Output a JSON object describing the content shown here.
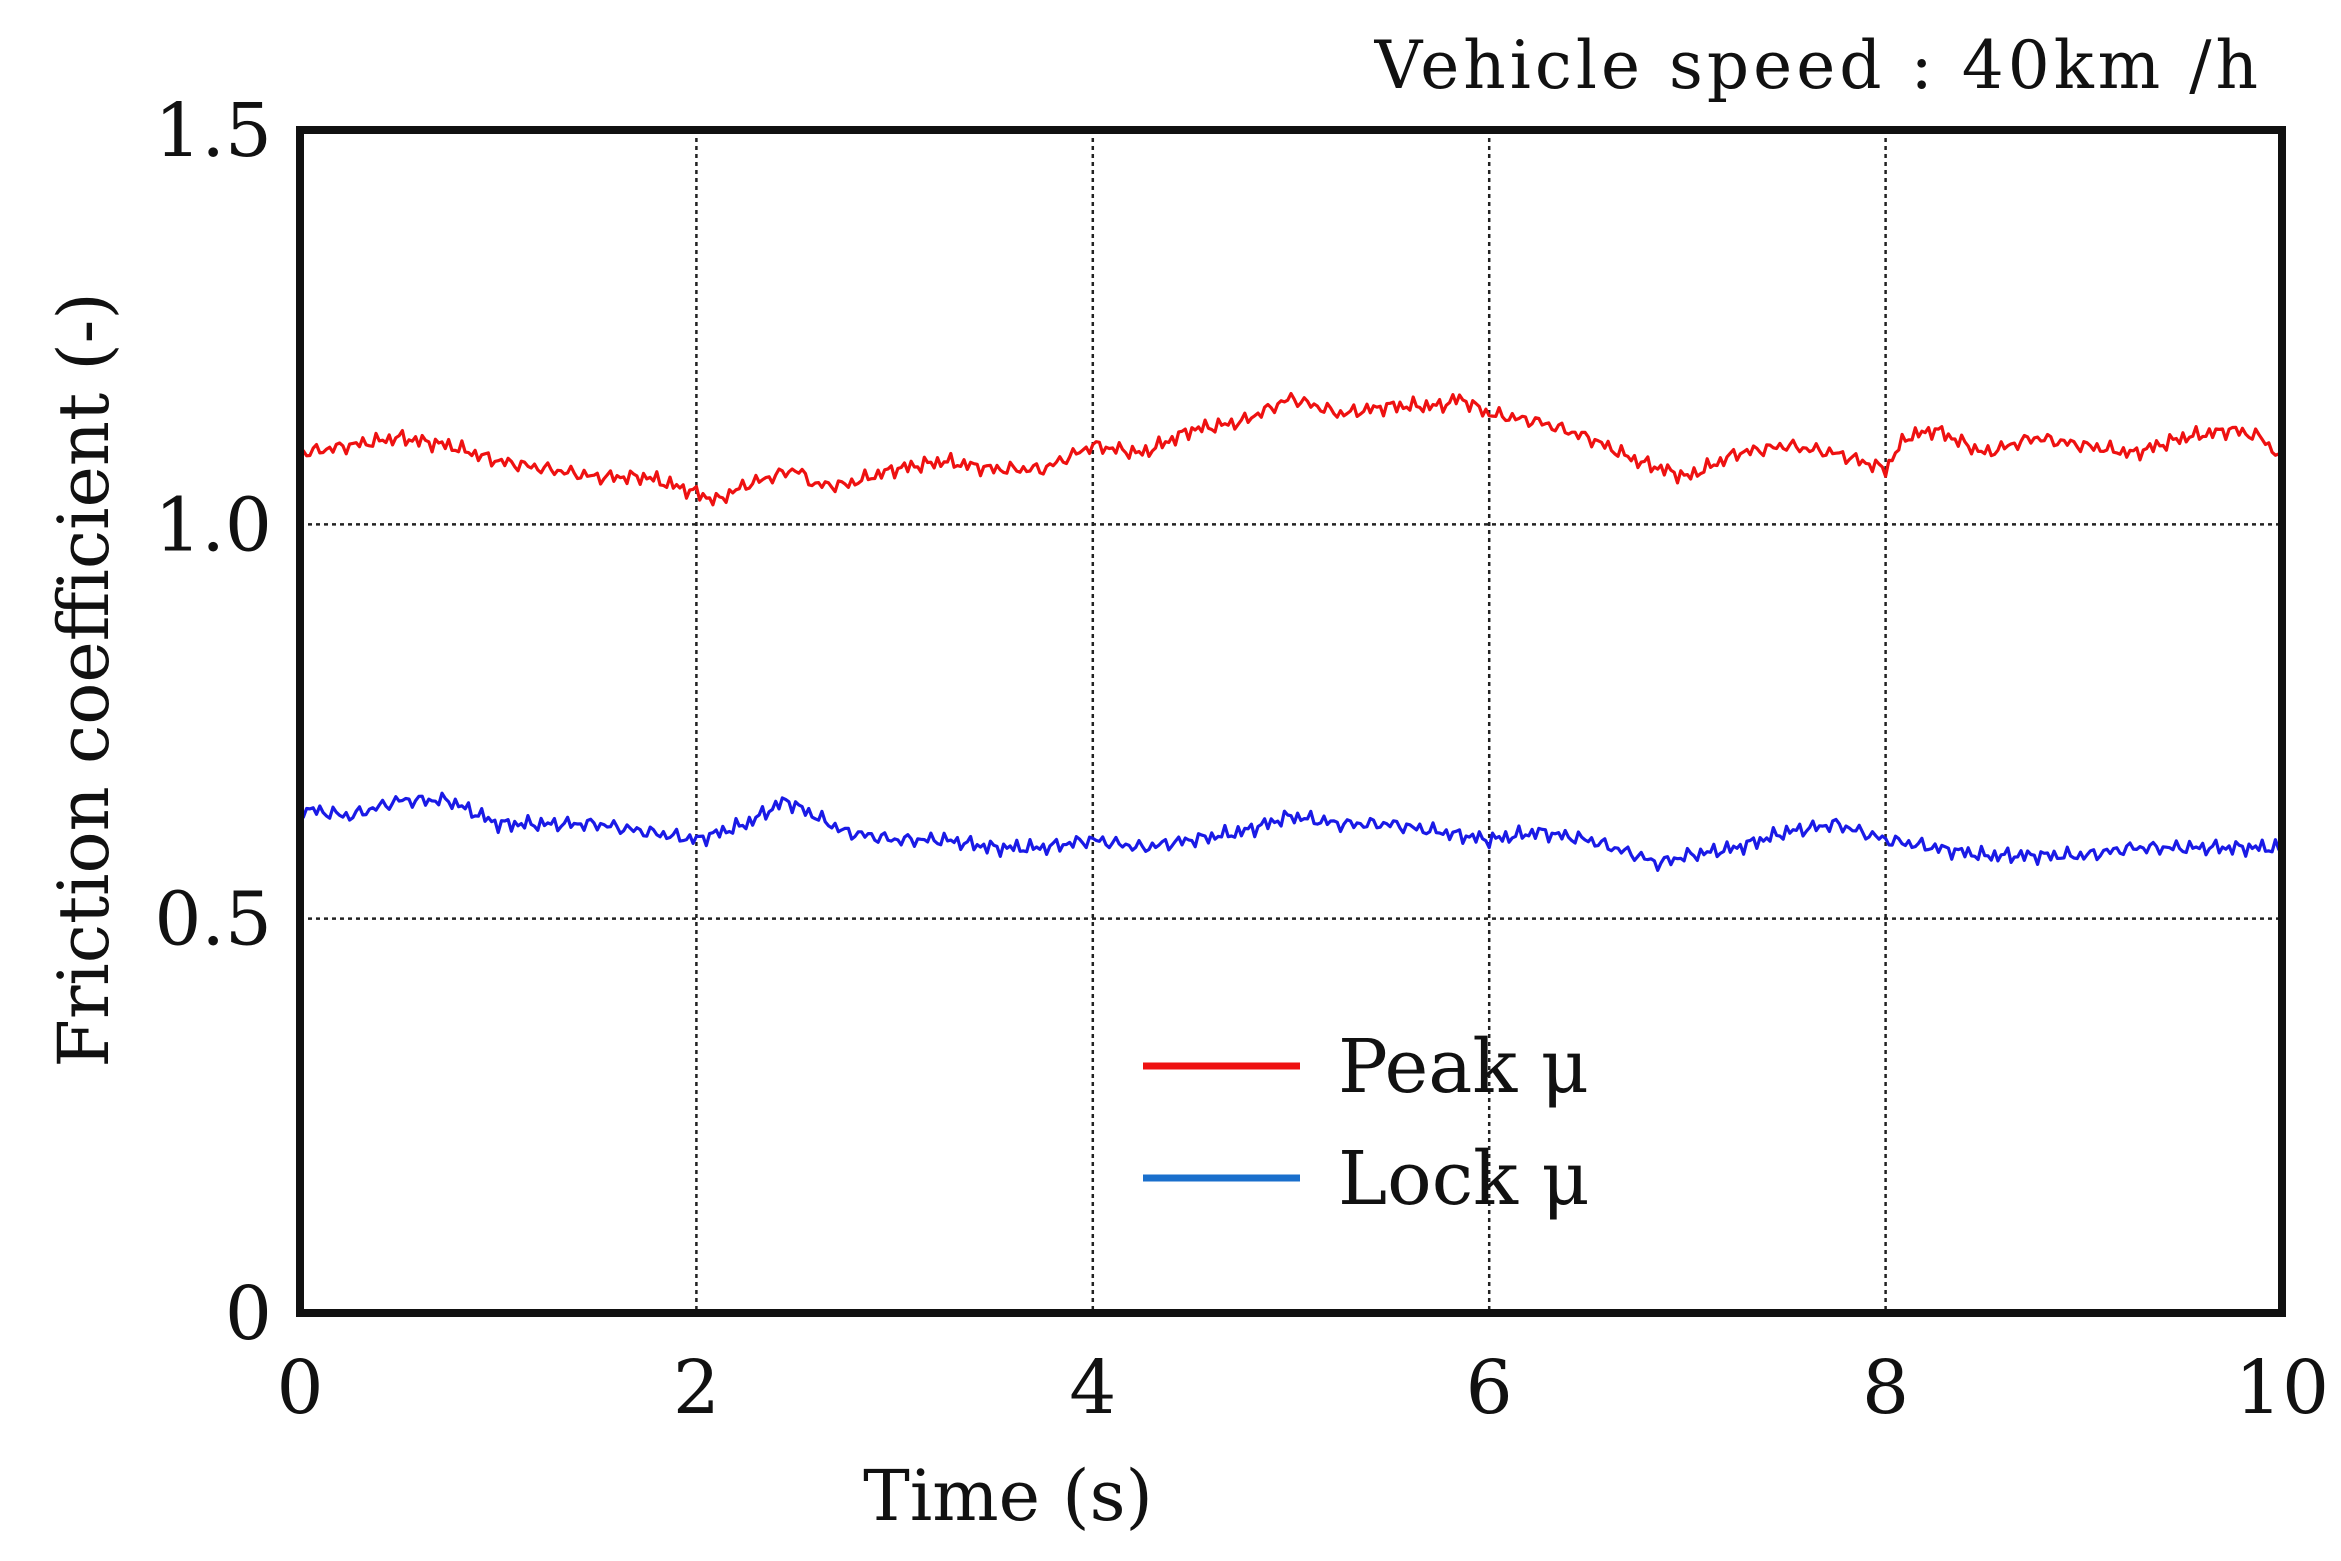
{
  "chart_data": {
    "type": "line",
    "annotation": "Vehicle speed : 40km /h",
    "xlabel": "Time (s)",
    "ylabel": "Friction coefficient (-)",
    "xlim": [
      0,
      10
    ],
    "ylim": [
      0,
      1.5
    ],
    "x_ticks": [
      0,
      2,
      4,
      6,
      8,
      10
    ],
    "x_tick_labels": [
      "0",
      "2",
      "4",
      "6",
      "8",
      "10"
    ],
    "y_ticks": [
      0,
      0.5,
      1.0,
      1.5
    ],
    "y_tick_labels": [
      "0",
      "0.5",
      "1.0",
      "1.5"
    ],
    "grid": true,
    "legend_position": "bottom-center",
    "series": [
      {
        "name": "Peak μ",
        "color": "#ee1111",
        "x": [
          0,
          0.25,
          0.5,
          0.75,
          1.0,
          1.25,
          1.5,
          1.75,
          2.0,
          2.1,
          2.25,
          2.5,
          2.6,
          2.75,
          3.0,
          3.25,
          3.5,
          3.75,
          4.0,
          4.25,
          4.5,
          4.75,
          5.0,
          5.25,
          5.5,
          5.75,
          5.85,
          6.0,
          6.25,
          6.5,
          6.75,
          7.0,
          7.25,
          7.5,
          7.75,
          8.0,
          8.1,
          8.25,
          8.5,
          8.75,
          9.0,
          9.25,
          9.5,
          9.75,
          9.9,
          10.0
        ],
        "values": [
          1.09,
          1.1,
          1.11,
          1.1,
          1.08,
          1.07,
          1.06,
          1.06,
          1.04,
          1.03,
          1.05,
          1.07,
          1.05,
          1.05,
          1.07,
          1.08,
          1.07,
          1.07,
          1.1,
          1.09,
          1.12,
          1.13,
          1.16,
          1.14,
          1.15,
          1.15,
          1.16,
          1.14,
          1.13,
          1.11,
          1.08,
          1.06,
          1.09,
          1.1,
          1.09,
          1.07,
          1.11,
          1.12,
          1.09,
          1.11,
          1.1,
          1.09,
          1.11,
          1.12,
          1.11,
          1.08
        ]
      },
      {
        "name": "Lock μ",
        "color": "#1a1ae6",
        "legend_color": "#1a6fcc",
        "x": [
          0,
          0.25,
          0.5,
          0.75,
          1.0,
          1.25,
          1.5,
          1.75,
          2.0,
          2.25,
          2.45,
          2.75,
          3.0,
          3.25,
          3.5,
          3.75,
          4.0,
          4.25,
          4.5,
          4.75,
          5.0,
          5.25,
          5.5,
          5.75,
          6.0,
          6.25,
          6.5,
          6.75,
          6.85,
          7.0,
          7.25,
          7.5,
          7.75,
          8.0,
          8.25,
          8.5,
          8.75,
          9.0,
          9.25,
          9.5,
          9.75,
          10.0
        ],
        "values": [
          0.64,
          0.63,
          0.65,
          0.65,
          0.62,
          0.62,
          0.62,
          0.61,
          0.6,
          0.62,
          0.65,
          0.61,
          0.6,
          0.6,
          0.59,
          0.59,
          0.6,
          0.59,
          0.6,
          0.61,
          0.63,
          0.62,
          0.62,
          0.61,
          0.6,
          0.61,
          0.6,
          0.58,
          0.57,
          0.58,
          0.59,
          0.61,
          0.62,
          0.6,
          0.59,
          0.58,
          0.58,
          0.58,
          0.59,
          0.59,
          0.59,
          0.59
        ]
      }
    ]
  }
}
